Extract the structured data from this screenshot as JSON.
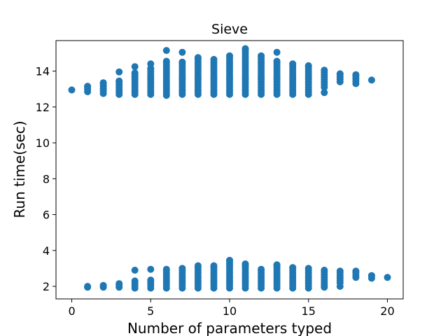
{
  "chart_data": {
    "type": "scatter",
    "title": "Sieve",
    "xlabel": "Number of parameters typed",
    "ylabel": "Run time(sec)",
    "xlim": [
      -1,
      21
    ],
    "ylim": [
      1.3,
      15.7
    ],
    "xticks": [
      0,
      5,
      10,
      15,
      20
    ],
    "yticks": [
      2,
      4,
      6,
      8,
      10,
      12,
      14
    ],
    "grid": false,
    "marker_color": "#1f77b4",
    "clusters": [
      {
        "x": 0,
        "upper": [
          12.95,
          12.95
        ],
        "lower": []
      },
      {
        "x": 1,
        "upper": [
          12.85,
          13.15
        ],
        "lower": [
          1.95,
          2.0
        ]
      },
      {
        "x": 2,
        "upper": [
          12.75,
          13.35
        ],
        "lower": [
          1.95,
          2.05
        ]
      },
      {
        "x": 3,
        "upper": [
          12.7,
          13.45
        ],
        "lower": [
          1.95,
          2.15
        ],
        "outliers": [
          13.95
        ]
      },
      {
        "x": 4,
        "upper": [
          12.7,
          13.9
        ],
        "lower": [
          1.9,
          2.3
        ],
        "outliers": [
          14.25,
          2.9
        ]
      },
      {
        "x": 5,
        "upper": [
          12.7,
          14.15
        ],
        "lower": [
          1.9,
          2.35
        ],
        "outliers": [
          14.4,
          2.95
        ]
      },
      {
        "x": 6,
        "upper": [
          12.65,
          14.55
        ],
        "lower": [
          1.9,
          2.95
        ],
        "outliers": [
          15.15
        ]
      },
      {
        "x": 7,
        "upper": [
          12.7,
          14.5
        ],
        "lower": [
          1.9,
          3.0
        ],
        "outliers": [
          15.05
        ]
      },
      {
        "x": 8,
        "upper": [
          12.7,
          14.75
        ],
        "lower": [
          1.9,
          3.15
        ]
      },
      {
        "x": 9,
        "upper": [
          12.7,
          14.65
        ],
        "lower": [
          1.9,
          3.15
        ]
      },
      {
        "x": 10,
        "upper": [
          12.7,
          14.85
        ],
        "lower": [
          1.9,
          3.45
        ]
      },
      {
        "x": 11,
        "upper": [
          12.7,
          15.25
        ],
        "lower": [
          1.9,
          3.25
        ]
      },
      {
        "x": 12,
        "upper": [
          12.7,
          14.85
        ],
        "lower": [
          1.9,
          2.95
        ]
      },
      {
        "x": 13,
        "upper": [
          12.7,
          14.55
        ],
        "lower": [
          1.9,
          3.2
        ],
        "outliers": [
          15.05
        ]
      },
      {
        "x": 14,
        "upper": [
          12.7,
          14.4
        ],
        "lower": [
          1.9,
          3.05
        ]
      },
      {
        "x": 15,
        "upper": [
          12.7,
          14.3
        ],
        "lower": [
          1.9,
          3.0
        ]
      },
      {
        "x": 16,
        "upper": [
          13.1,
          14.05
        ],
        "lower": [
          1.95,
          2.9
        ],
        "outliers": [
          12.8
        ]
      },
      {
        "x": 17,
        "upper": [
          13.4,
          13.85
        ],
        "lower": [
          2.2,
          2.85
        ],
        "outliers": [
          2.0
        ]
      },
      {
        "x": 18,
        "upper": [
          13.3,
          13.8
        ],
        "lower": [
          2.5,
          2.85
        ]
      },
      {
        "x": 19,
        "upper": [
          13.5,
          13.5
        ],
        "lower": [
          2.45,
          2.6
        ]
      },
      {
        "x": 20,
        "upper": [],
        "lower": [
          2.5,
          2.5
        ]
      }
    ]
  }
}
